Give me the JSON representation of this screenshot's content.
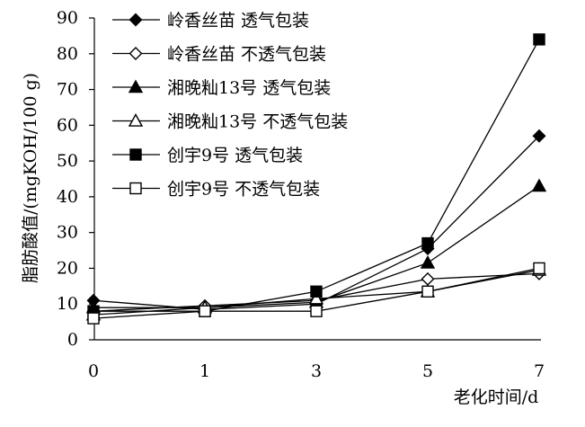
{
  "chart_data": {
    "type": "line",
    "title": "",
    "xlabel": "老化时间/d",
    "ylabel": "脂肪酸值/(mgKOH/100 g)",
    "x": [
      "0",
      "1",
      "3",
      "5",
      "7"
    ],
    "ylim": [
      0,
      90
    ],
    "yticks": [
      "0",
      "10",
      "20",
      "30",
      "40",
      "50",
      "60",
      "70",
      "80",
      "90"
    ],
    "grid": false,
    "legend_position": "top-left",
    "series": [
      {
        "name": "岭香丝苗 透气包装",
        "marker": "diamond-filled",
        "values": [
          11,
          8.5,
          10,
          25.5,
          57
        ]
      },
      {
        "name": "岭香丝苗 不透气包装",
        "marker": "diamond-open",
        "values": [
          8,
          9.5,
          11,
          17,
          18.5
        ]
      },
      {
        "name": "湘晚籼13号 透气包装",
        "marker": "triangle-filled",
        "values": [
          9,
          9,
          10.5,
          21.5,
          43
        ]
      },
      {
        "name": "湘晚籼13号 不透气包装",
        "marker": "triangle-open",
        "values": [
          7,
          9,
          11.5,
          13.5,
          19.5
        ]
      },
      {
        "name": "创宇9号 透气包装",
        "marker": "square-filled",
        "values": [
          8,
          8,
          13.5,
          27,
          84
        ]
      },
      {
        "name": "创宇9号 不透气包装",
        "marker": "square-open",
        "values": [
          6,
          8,
          8,
          13.5,
          20
        ]
      }
    ]
  }
}
